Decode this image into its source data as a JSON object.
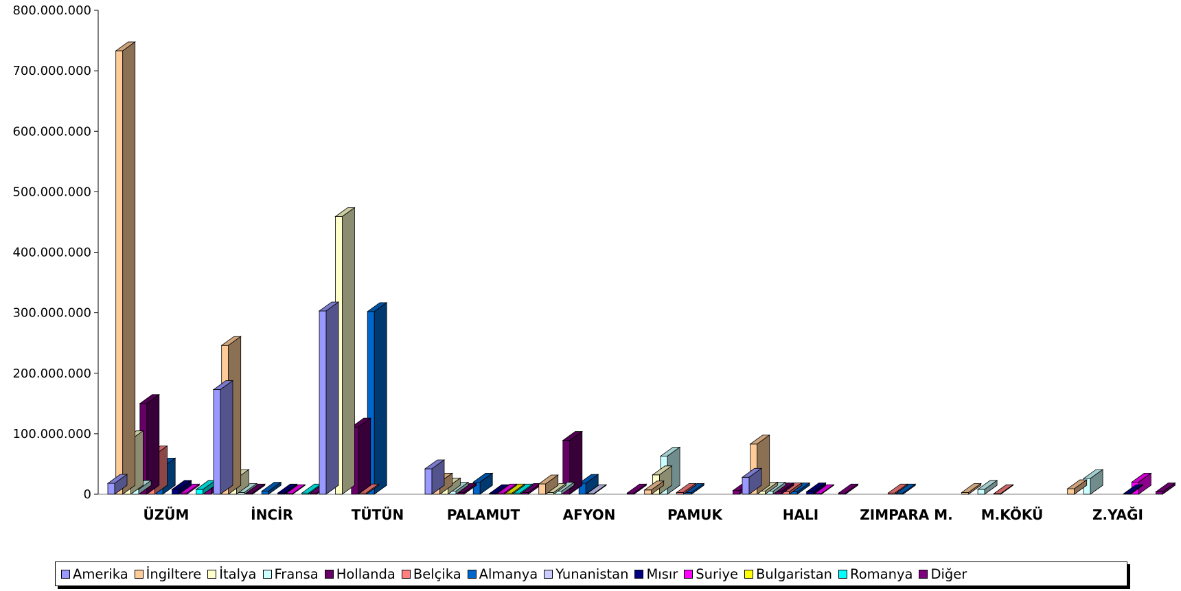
{
  "chart_data": {
    "type": "bar",
    "style": "3d-clustered-column",
    "categories": [
      "ÜZÜM",
      "İNCİR",
      "TÜTÜN",
      "PALAMUT",
      "AFYON",
      "PAMUK",
      "HALI",
      "ZIMPARA M.",
      "M.KÖKÜ",
      "Z.YAĞI"
    ],
    "ylim": [
      0,
      800000000
    ],
    "yticks": [
      "0",
      "100.000.000",
      "200.000.000",
      "300.000.000",
      "400.000.000",
      "500.000.000",
      "600.000.000",
      "700.000.000",
      "800.000.000"
    ],
    "grid": false,
    "legend_position": "bottom",
    "series": [
      {
        "name": "Amerika",
        "color": "#9999ff",
        "values": [
          18000000,
          173000000,
          303000000,
          42000000,
          0,
          0,
          28000000,
          0,
          0,
          0
        ]
      },
      {
        "name": "İngiltere",
        "color": "#ffcc99",
        "values": [
          733000000,
          246000000,
          0,
          20000000,
          17000000,
          7000000,
          83000000,
          0,
          3000000,
          9000000
        ]
      },
      {
        "name": "İtalya",
        "color": "#ffffcc",
        "values": [
          90000000,
          26000000,
          459000000,
          12000000,
          3000000,
          32000000,
          5000000,
          0,
          0,
          0
        ]
      },
      {
        "name": "Fransa",
        "color": "#ccffff",
        "values": [
          8000000,
          3000000,
          0,
          5000000,
          5000000,
          63000000,
          5000000,
          0,
          8000000,
          26000000
        ]
      },
      {
        "name": "Hollanda",
        "color": "#660066",
        "values": [
          150000000,
          2000000,
          111000000,
          3000000,
          89000000,
          0,
          4000000,
          0,
          0,
          0
        ]
      },
      {
        "name": "Belçika",
        "color": "#ff8080",
        "values": [
          65000000,
          0,
          2000000,
          0,
          0,
          3000000,
          4000000,
          2000000,
          1000000,
          0
        ]
      },
      {
        "name": "Almanya",
        "color": "#0066cc",
        "values": [
          45000000,
          5000000,
          302000000,
          20000000,
          18000000,
          3000000,
          4000000,
          2000000,
          0,
          0
        ]
      },
      {
        "name": "Yunanistan",
        "color": "#ccccff",
        "values": [
          0,
          0,
          0,
          0,
          1000000,
          0,
          0,
          0,
          0,
          0
        ]
      },
      {
        "name": "Mısır",
        "color": "#000080",
        "values": [
          8000000,
          2000000,
          0,
          1000000,
          0,
          0,
          4000000,
          0,
          0,
          1000000
        ]
      },
      {
        "name": "Suriye",
        "color": "#ff00ff",
        "values": [
          2000000,
          1000000,
          0,
          2000000,
          0,
          0,
          1000000,
          0,
          0,
          20000000
        ]
      },
      {
        "name": "Bulgaristan",
        "color": "#ffff00",
        "values": [
          0,
          0,
          0,
          2000000,
          0,
          0,
          0,
          0,
          0,
          0
        ]
      },
      {
        "name": "Romanya",
        "color": "#00ffff",
        "values": [
          8000000,
          2000000,
          0,
          2000000,
          0,
          0,
          0,
          0,
          0,
          0
        ]
      },
      {
        "name": "Diğer",
        "color": "#800080",
        "values": [
          9000000,
          2000000,
          0,
          3000000,
          2000000,
          6000000,
          2000000,
          0,
          0,
          4000000
        ]
      }
    ]
  }
}
